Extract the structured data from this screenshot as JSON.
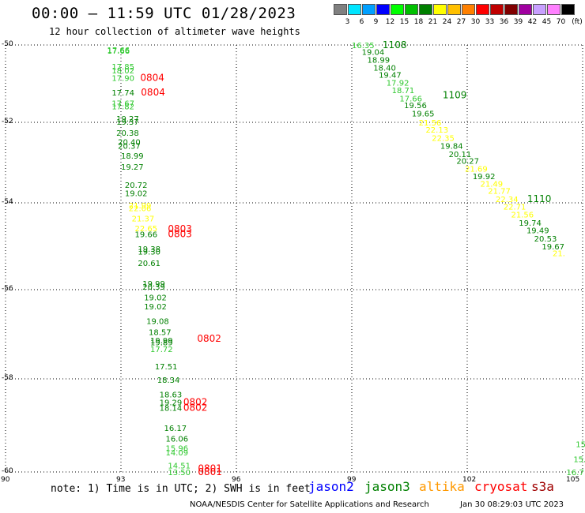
{
  "header": {
    "title": "00:00 — 11:59 UTC 01/28/2023",
    "subtitle": "12 hour collection of altimeter wave heights"
  },
  "colorbar": {
    "unit_label": "(ft)",
    "cells": [
      {
        "label": "3",
        "color": "#808080"
      },
      {
        "label": "6",
        "color": "#00e5ff"
      },
      {
        "label": "9",
        "color": "#00a0ff"
      },
      {
        "label": "12",
        "color": "#0000ff"
      },
      {
        "label": "15",
        "color": "#00ff00"
      },
      {
        "label": "18",
        "color": "#00c000"
      },
      {
        "label": "21",
        "color": "#008000"
      },
      {
        "label": "24",
        "color": "#ffff00"
      },
      {
        "label": "27",
        "color": "#ffc000"
      },
      {
        "label": "30",
        "color": "#ff8000"
      },
      {
        "label": "33",
        "color": "#ff0000"
      },
      {
        "label": "36",
        "color": "#c00000"
      },
      {
        "label": "39",
        "color": "#800000"
      },
      {
        "label": "42",
        "color": "#a000a0"
      },
      {
        "label": "45",
        "color": "#c8a0ff"
      },
      {
        "label": "70",
        "color": "#ff80ff"
      },
      {
        "label": "",
        "color": "#000000"
      }
    ]
  },
  "map": {
    "lat_labels": [
      "-50",
      "-52",
      "-54",
      "-56",
      "-58",
      "-60"
    ],
    "lon_labels": [
      "90",
      "93",
      "96",
      "99",
      "102",
      "105"
    ],
    "colors": {
      "green": "#008000",
      "lightgreen": "#2ec82e",
      "yellow": "#ffff00",
      "red": "#ff0000"
    },
    "tracks": [
      {
        "name": "west-track",
        "points": [
          {
            "v": "17.66",
            "lon": 92.64,
            "lat": -50.12,
            "c": "lightgreen"
          },
          {
            "v": "17.66",
            "lon": 92.64,
            "lat": -50.14,
            "c": "lightgreen"
          },
          {
            "v": "17.85",
            "lon": 92.76,
            "lat": -50.55,
            "c": "lightgreen"
          },
          {
            "v": "18.02",
            "lon": 92.76,
            "lat": -50.65,
            "c": "lightgreen"
          },
          {
            "v": "17.90",
            "lon": 92.76,
            "lat": -50.85,
            "c": "lightgreen"
          },
          {
            "v": "17.74",
            "lon": 92.76,
            "lat": -51.22,
            "c": "green"
          },
          {
            "v": "17.67",
            "lon": 92.76,
            "lat": -51.5,
            "c": "lightgreen"
          },
          {
            "v": "17.82",
            "lon": 92.76,
            "lat": -51.58,
            "c": "lightgreen"
          },
          {
            "v": "19.27",
            "lon": 92.88,
            "lat": -51.9,
            "c": "green"
          },
          {
            "v": "19.37",
            "lon": 92.88,
            "lat": -51.98,
            "c": "green"
          },
          {
            "v": "20.38",
            "lon": 92.88,
            "lat": -52.25,
            "c": "green"
          },
          {
            "v": "20.40",
            "lon": 92.92,
            "lat": -52.48,
            "c": "green"
          },
          {
            "v": "20.37",
            "lon": 92.92,
            "lat": -52.58,
            "c": "green"
          },
          {
            "v": "18.99",
            "lon": 93.0,
            "lat": -52.82,
            "c": "green"
          },
          {
            "v": "19.27",
            "lon": 93.0,
            "lat": -53.1,
            "c": "green"
          },
          {
            "v": "20.72",
            "lon": 93.1,
            "lat": -53.55,
            "c": "green"
          },
          {
            "v": "19.02",
            "lon": 93.1,
            "lat": -53.75,
            "c": "green"
          },
          {
            "v": "21.99",
            "lon": 93.2,
            "lat": -54.05,
            "c": "yellow"
          },
          {
            "v": "22.06",
            "lon": 93.2,
            "lat": -54.12,
            "c": "yellow"
          },
          {
            "v": "21.37",
            "lon": 93.28,
            "lat": -54.35,
            "c": "yellow"
          },
          {
            "v": "22.65",
            "lon": 93.36,
            "lat": -54.58,
            "c": "yellow"
          },
          {
            "v": "19.66",
            "lon": 93.36,
            "lat": -54.72,
            "c": "green"
          },
          {
            "v": "19.38",
            "lon": 93.44,
            "lat": -55.05,
            "c": "green"
          },
          {
            "v": "19.30",
            "lon": 93.44,
            "lat": -55.12,
            "c": "green"
          },
          {
            "v": "20.61",
            "lon": 93.44,
            "lat": -55.38,
            "c": "green"
          },
          {
            "v": "19.99",
            "lon": 93.56,
            "lat": -55.85,
            "c": "green"
          },
          {
            "v": "20.39",
            "lon": 93.56,
            "lat": -55.93,
            "c": "green"
          },
          {
            "v": "19.02",
            "lon": 93.6,
            "lat": -56.17,
            "c": "green"
          },
          {
            "v": "19.02",
            "lon": 93.6,
            "lat": -56.37,
            "c": "green"
          },
          {
            "v": "19.08",
            "lon": 93.66,
            "lat": -56.7,
            "c": "green"
          },
          {
            "v": "18.57",
            "lon": 93.72,
            "lat": -56.95,
            "c": "green"
          },
          {
            "v": "19.99",
            "lon": 93.76,
            "lat": -57.13,
            "c": "green"
          },
          {
            "v": "19.89",
            "lon": 93.76,
            "lat": -57.18,
            "c": "green"
          },
          {
            "v": "17.72",
            "lon": 93.76,
            "lat": -57.33,
            "c": "lightgreen"
          },
          {
            "v": "17.51",
            "lon": 93.88,
            "lat": -57.72,
            "c": "green"
          },
          {
            "v": "18.34",
            "lon": 93.94,
            "lat": -58.02,
            "c": "green"
          },
          {
            "v": "18.63",
            "lon": 94.0,
            "lat": -58.33,
            "c": "green"
          },
          {
            "v": "19.29",
            "lon": 94.0,
            "lat": -58.5,
            "c": "green"
          },
          {
            "v": "18.14",
            "lon": 94.0,
            "lat": -58.62,
            "c": "green"
          },
          {
            "v": "16.17",
            "lon": 94.12,
            "lat": -59.05,
            "c": "green"
          },
          {
            "v": "16.06",
            "lon": 94.16,
            "lat": -59.28,
            "c": "green"
          },
          {
            "v": "15.96",
            "lon": 94.16,
            "lat": -59.48,
            "c": "lightgreen"
          },
          {
            "v": "14.09",
            "lon": 94.16,
            "lat": -59.58,
            "c": "lightgreen"
          },
          {
            "v": "14.51",
            "lon": 94.22,
            "lat": -59.86,
            "c": "lightgreen"
          },
          {
            "v": "13.50",
            "lon": 94.22,
            "lat": -60.0,
            "c": "lightgreen"
          }
        ],
        "time_labels": [
          {
            "v": "0804",
            "lon": 93.5,
            "lat": -50.85
          },
          {
            "v": "0804",
            "lon": 93.52,
            "lat": -51.22
          },
          {
            "v": "0803",
            "lon": 94.22,
            "lat": -54.6
          },
          {
            "v": "0803",
            "lon": 94.22,
            "lat": -54.72
          },
          {
            "v": "0802",
            "lon": 94.98,
            "lat": -57.1
          },
          {
            "v": "0802",
            "lon": 94.62,
            "lat": -58.5
          },
          {
            "v": "0802",
            "lon": 94.62,
            "lat": -58.62
          },
          {
            "v": "0801",
            "lon": 95.0,
            "lat": -59.92
          },
          {
            "v": "0801",
            "lon": 95.0,
            "lat": -60.04
          }
        ]
      },
      {
        "name": "east-track",
        "points": [
          {
            "v": "16.35",
            "lon": 99.0,
            "lat": -50.0,
            "c": "lightgreen"
          },
          {
            "v": "19.04",
            "lon": 99.26,
            "lat": -50.17,
            "c": "green"
          },
          {
            "v": "18.99",
            "lon": 99.4,
            "lat": -50.38,
            "c": "green"
          },
          {
            "v": "18.40",
            "lon": 99.56,
            "lat": -50.58,
            "c": "green"
          },
          {
            "v": "19.47",
            "lon": 99.7,
            "lat": -50.77,
            "c": "green"
          },
          {
            "v": "17.92",
            "lon": 99.9,
            "lat": -50.97,
            "c": "lightgreen"
          },
          {
            "v": "18.71",
            "lon": 100.04,
            "lat": -51.16,
            "c": "lightgreen"
          },
          {
            "v": "17.66",
            "lon": 100.24,
            "lat": -51.38,
            "c": "lightgreen"
          },
          {
            "v": "19.56",
            "lon": 100.36,
            "lat": -51.55,
            "c": "green"
          },
          {
            "v": "19.65",
            "lon": 100.56,
            "lat": -51.77,
            "c": "green"
          },
          {
            "v": "21.56",
            "lon": 100.74,
            "lat": -52.0,
            "c": "yellow"
          },
          {
            "v": "22.13",
            "lon": 100.92,
            "lat": -52.18,
            "c": "yellow"
          },
          {
            "v": "22.35",
            "lon": 101.08,
            "lat": -52.38,
            "c": "yellow"
          },
          {
            "v": "19.84",
            "lon": 101.3,
            "lat": -52.58,
            "c": "green"
          },
          {
            "v": "20.11",
            "lon": 101.52,
            "lat": -52.78,
            "c": "green"
          },
          {
            "v": "20.27",
            "lon": 101.72,
            "lat": -52.95,
            "c": "green"
          },
          {
            "v": "21.69",
            "lon": 101.94,
            "lat": -53.15,
            "c": "yellow"
          },
          {
            "v": "19.92",
            "lon": 102.14,
            "lat": -53.33,
            "c": "green"
          },
          {
            "v": "21.49",
            "lon": 102.34,
            "lat": -53.52,
            "c": "yellow"
          },
          {
            "v": "21.77",
            "lon": 102.54,
            "lat": -53.7,
            "c": "yellow"
          },
          {
            "v": "22.34",
            "lon": 102.74,
            "lat": -53.9,
            "c": "yellow"
          },
          {
            "v": "22.71",
            "lon": 102.94,
            "lat": -54.08,
            "c": "yellow"
          },
          {
            "v": "21.56",
            "lon": 103.14,
            "lat": -54.26,
            "c": "yellow"
          },
          {
            "v": "19.74",
            "lon": 103.34,
            "lat": -54.45,
            "c": "green"
          },
          {
            "v": "19.49",
            "lon": 103.54,
            "lat": -54.63,
            "c": "green"
          },
          {
            "v": "20.53",
            "lon": 103.74,
            "lat": -54.82,
            "c": "green"
          },
          {
            "v": "19.67",
            "lon": 103.94,
            "lat": -55.0,
            "c": "green"
          },
          {
            "v": "21.",
            "lon": 104.22,
            "lat": -55.15,
            "c": "yellow"
          }
        ],
        "time_labels": [
          {
            "v": "1108",
            "lon": 99.8,
            "lat": -50.0
          },
          {
            "v": "1109",
            "lon": 101.36,
            "lat": -51.3
          },
          {
            "v": "1110",
            "lon": 103.56,
            "lat": -53.9
          }
        ]
      },
      {
        "name": "edge-track",
        "points": [
          {
            "v": "15",
            "lon": 104.82,
            "lat": -59.4,
            "c": "lightgreen"
          },
          {
            "v": "15.",
            "lon": 104.76,
            "lat": -59.72,
            "c": "lightgreen"
          },
          {
            "v": "16.7",
            "lon": 104.58,
            "lat": -60.0,
            "c": "lightgreen"
          }
        ],
        "time_labels": []
      }
    ]
  },
  "footer": {
    "note": "note: 1) Time is in UTC; 2) SWH is in feet",
    "legend": [
      {
        "label": "jason2",
        "color": "#0000ff"
      },
      {
        "label": "jason3",
        "color": "#008000"
      },
      {
        "label": "altika",
        "color": "#ff9900"
      },
      {
        "label": "cryosat",
        "color": "#ff0000"
      },
      {
        "label": "s3a",
        "color": "#a00000"
      }
    ],
    "credit": "NOAA/NESDIS Center for Satellite Applications and Research",
    "timestamp": "Jan 30 08:29:03 UTC 2023"
  }
}
